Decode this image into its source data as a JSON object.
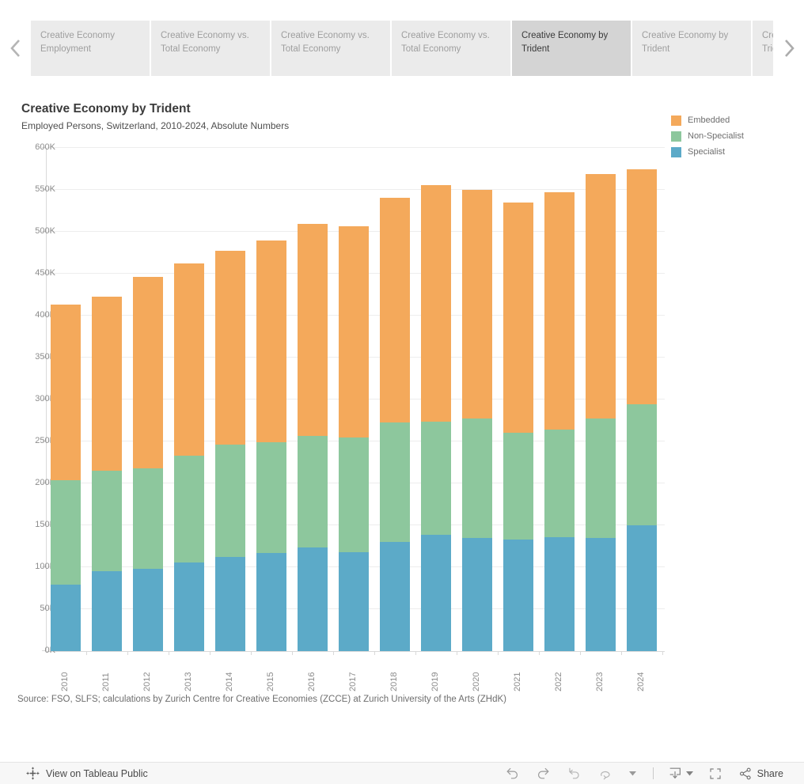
{
  "tabs": {
    "items": [
      {
        "label": "Creative Economy Employment",
        "active": false
      },
      {
        "label": "Creative Economy vs. Total Economy",
        "active": false
      },
      {
        "label": "Creative Economy vs. Total Economy",
        "active": false
      },
      {
        "label": "Creative Economy vs. Total Economy",
        "active": false
      },
      {
        "label": "Creative Economy by Trident",
        "active": true
      },
      {
        "label": "Creative Economy by Trident",
        "active": false
      },
      {
        "label": "Creative Economy by Trident",
        "active": false
      }
    ]
  },
  "chart": {
    "title": "Creative Economy by Trident",
    "subtitle": "Employed Persons, Switzerland, 2010-2024, Absolute Numbers"
  },
  "chart_data": {
    "type": "bar",
    "stacked": true,
    "title": "Creative Economy by Trident",
    "subtitle": "Employed Persons, Switzerland, 2010-2024, Absolute Numbers",
    "categories": [
      "2010",
      "2011",
      "2012",
      "2013",
      "2014",
      "2015",
      "2016",
      "2017",
      "2018",
      "2019",
      "2020",
      "2021",
      "2022",
      "2023",
      "2024"
    ],
    "series": [
      {
        "name": "Specialist",
        "color": "#5CAAC8",
        "values": [
          79,
          95,
          98,
          106,
          112,
          117,
          124,
          118,
          130,
          139,
          135,
          133,
          136,
          135,
          150
        ]
      },
      {
        "name": "Non-Specialist",
        "color": "#8DC79D",
        "values": [
          125,
          120,
          120,
          127,
          134,
          132,
          133,
          137,
          143,
          135,
          142,
          127,
          128,
          142,
          144
        ]
      },
      {
        "name": "Embedded",
        "color": "#F4A95B",
        "values": [
          209,
          208,
          228,
          229,
          231,
          241,
          252,
          252,
          268,
          282,
          273,
          275,
          283,
          292,
          281
        ]
      }
    ],
    "totals": [
      413,
      423,
      446,
      462,
      477,
      490,
      509,
      507,
      541,
      556,
      550,
      535,
      547,
      569,
      575
    ],
    "unit": "thousands (K)",
    "ylim": [
      0,
      600
    ],
    "ytick_step": 50,
    "ytick_suffix": "K",
    "grid": true,
    "legend_position": "top-right",
    "legend_order": [
      "Embedded",
      "Non-Specialist",
      "Specialist"
    ]
  },
  "source_note": "Source: FSO, SLFS; calculations by Zurich Centre for Creative Economies (ZCCE) at Zurich University of the Arts (ZHdK)",
  "toolbar": {
    "view_label": "View on Tableau Public",
    "share_label": "Share"
  },
  "colors": {
    "embedded": "#F4A95B",
    "non_specialist": "#8DC79D",
    "specialist": "#5CAAC8",
    "tab_bg": "#EBEBEB",
    "tab_active_bg": "#D4D4D4",
    "gridline": "#EDEDED",
    "axis": "#D9D9D9"
  }
}
